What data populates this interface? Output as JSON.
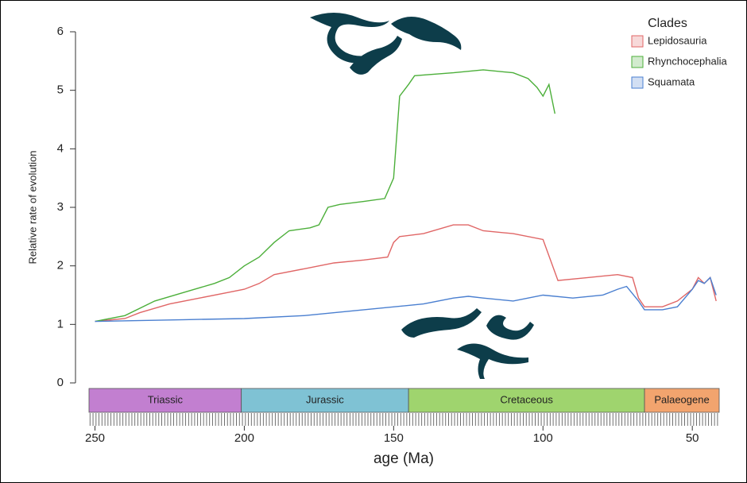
{
  "chart_data": {
    "type": "line",
    "ylabel": "Relative rate of evolution",
    "xlabel": "age (Ma)",
    "legend_title": "Clades",
    "legend": "top-right",
    "xlim": [
      252,
      41
    ],
    "xticks": [
      250,
      200,
      150,
      100,
      50
    ],
    "ylim": [
      0,
      6
    ],
    "yticks": [
      0,
      1,
      2,
      3,
      4,
      5,
      6
    ],
    "periods": [
      {
        "name": "Triassic",
        "start": 252,
        "end": 201,
        "color": "#c27fd0"
      },
      {
        "name": "Jurassic",
        "start": 201,
        "end": 145,
        "color": "#7fc2d4"
      },
      {
        "name": "Cretaceous",
        "start": 145,
        "end": 66,
        "color": "#9fd46e"
      },
      {
        "name": "Palaeogene",
        "start": 66,
        "end": 41,
        "color": "#f2a46e"
      }
    ],
    "series": [
      {
        "name": "Lepidosauria",
        "color": "#e06666",
        "x": [
          250,
          240,
          235,
          225,
          215,
          205,
          200,
          195,
          190,
          180,
          175,
          170,
          160,
          152,
          150,
          148,
          140,
          130,
          125,
          120,
          110,
          100,
          95,
          85,
          75,
          70,
          68,
          66,
          60,
          55,
          50,
          48,
          46,
          44,
          42
        ],
        "values": [
          1.05,
          1.1,
          1.2,
          1.35,
          1.45,
          1.55,
          1.6,
          1.7,
          1.85,
          1.95,
          2.0,
          2.05,
          2.1,
          2.15,
          2.4,
          2.5,
          2.55,
          2.7,
          2.7,
          2.6,
          2.55,
          2.45,
          1.75,
          1.8,
          1.85,
          1.8,
          1.45,
          1.3,
          1.3,
          1.4,
          1.6,
          1.8,
          1.7,
          1.8,
          1.4
        ]
      },
      {
        "name": "Rhynchocephalia",
        "color": "#4caf3a",
        "x": [
          250,
          240,
          230,
          220,
          210,
          205,
          200,
          195,
          190,
          185,
          178,
          175,
          172,
          168,
          160,
          153,
          150,
          148,
          145,
          143,
          130,
          120,
          110,
          105,
          102,
          100,
          98,
          96
        ],
        "values": [
          1.05,
          1.15,
          1.4,
          1.55,
          1.7,
          1.8,
          2.0,
          2.15,
          2.4,
          2.6,
          2.65,
          2.7,
          3.0,
          3.05,
          3.1,
          3.15,
          3.5,
          4.9,
          5.1,
          5.25,
          5.3,
          5.35,
          5.3,
          5.2,
          5.05,
          4.9,
          5.1,
          4.6
        ]
      },
      {
        "name": "Squamata",
        "color": "#4a7fd0",
        "x": [
          250,
          220,
          200,
          180,
          160,
          140,
          130,
          125,
          120,
          110,
          100,
          90,
          80,
          75,
          72,
          68,
          66,
          60,
          55,
          50,
          48,
          46,
          44,
          42
        ],
        "values": [
          1.05,
          1.08,
          1.1,
          1.15,
          1.25,
          1.35,
          1.45,
          1.48,
          1.45,
          1.4,
          1.5,
          1.45,
          1.5,
          1.6,
          1.65,
          1.4,
          1.25,
          1.25,
          1.3,
          1.6,
          1.75,
          1.7,
          1.8,
          1.5
        ]
      }
    ]
  }
}
